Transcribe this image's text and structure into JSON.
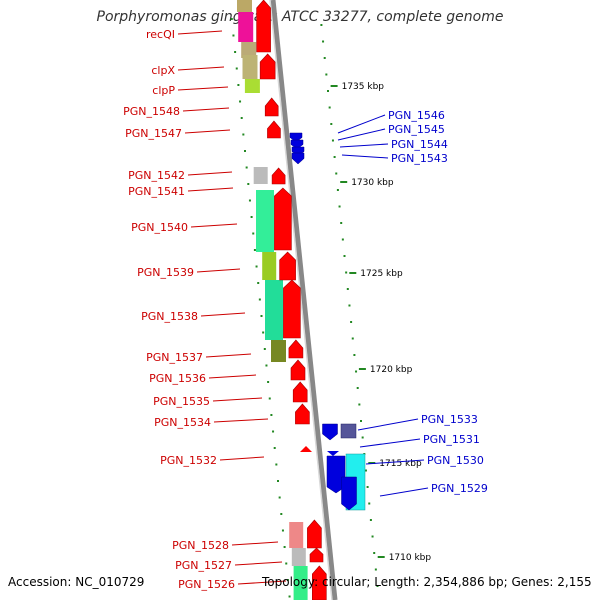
{
  "title": "Porphyromonas gingivalis ATCC 33277, complete genome",
  "footer": {
    "accession": "Accession: NC_010729",
    "summary": "Topology: circular; Length: 2,354,886 bp; Genes: 2,155"
  },
  "colors": {
    "label_red": "#cc0000",
    "label_blue": "#0000cc",
    "forward_feature": "#ff0000",
    "reverse_feature": "#0000dd",
    "backbone": "#888888",
    "tick": "#228822"
  },
  "chart_data": {
    "type": "linear-genome-map",
    "title": "Porphyromonas gingivalis ATCC 33277, complete genome",
    "scale_labels": [
      "1735 kbp",
      "1730 kbp",
      "1725 kbp",
      "1720 kbp",
      "1715 kbp",
      "1710 kbp"
    ],
    "forward_labels": [
      "recQI",
      "clpX",
      "clpP",
      "PGN_1548",
      "PGN_1547",
      "PGN_1542",
      "PGN_1541",
      "PGN_1540",
      "PGN_1539",
      "PGN_1538",
      "PGN_1537",
      "PGN_1536",
      "PGN_1535",
      "PGN_1534",
      "PGN_1532",
      "PGN_1528",
      "PGN_1527",
      "PGN_1526"
    ],
    "reverse_labels": [
      "PGN_1546",
      "PGN_1545",
      "PGN_1544",
      "PGN_1543",
      "PGN_1533",
      "PGN_1531",
      "PGN_1530",
      "PGN_1529"
    ]
  }
}
